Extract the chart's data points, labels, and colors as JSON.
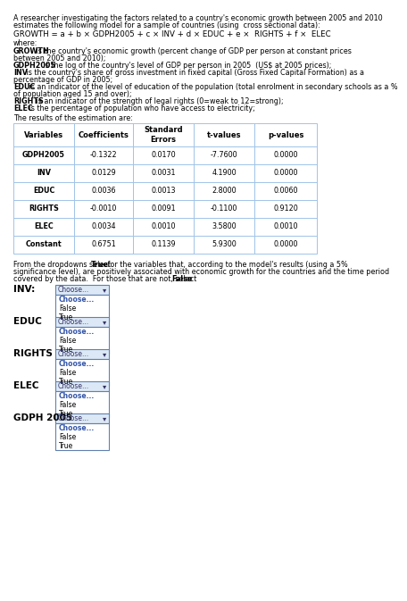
{
  "title_line1": "A researcher investigating the factors related to a country's economic growth between 2005 and 2010",
  "title_line2": "estimates the following model for a sample of countries (using  cross sectional data):",
  "equation": "GROWTH = a + b × GDPH2005 + c × INV + d × EDUC + e ×  RIGHTS + f ×  ELEC",
  "where_label": "where:",
  "def_labels": [
    "GROWTH",
    "GDPH2005",
    "INV",
    "EDUC",
    "RIGHTS",
    "ELEC"
  ],
  "def_texts": [
    " is the country's economic growth (percent change of GDP per person at constant prices",
    " is the log of the country's level of GDP per person in 2005  (US$ at 2005 prices);",
    " is the country's share of gross investment in fixed capital (Gross Fixed Capital Formation) as a",
    " is an indicator of the level of education of the population (total enrolment in secondary schools as a %",
    " is an indicator of the strength of legal rights (0=weak to 12=strong);",
    " is the percentage of population who have access to electricity;"
  ],
  "def_line2": [
    "between 2005 and 2010);",
    "",
    "percentage of GDP in 2005;",
    "of population aged 15 and over);",
    "",
    ""
  ],
  "results_label": "The results of the estimation are:",
  "table_headers": [
    "Variables",
    "Coefficients",
    "Standard\nErrors",
    "t-values",
    "p-values"
  ],
  "table_rows": [
    [
      "GDPH2005",
      "-0.1322",
      "0.0170",
      "-7.7600",
      "0.0000"
    ],
    [
      "INV",
      "0.0129",
      "0.0031",
      "4.1900",
      "0.0000"
    ],
    [
      "EDUC",
      "0.0036",
      "0.0013",
      "2.8000",
      "0.0060"
    ],
    [
      "RIGHTS",
      "-0.0010",
      "0.0091",
      "-0.1100",
      "0.9120"
    ],
    [
      "ELEC",
      "0.0034",
      "0.0010",
      "3.5800",
      "0.0010"
    ],
    [
      "Constant",
      "0.6751",
      "0.1139",
      "5.9300",
      "0.0000"
    ]
  ],
  "instr_line1": "From the dropdowns select True for the variables that, according to the model's results (using a 5%",
  "instr_line2": "significance level), are positively associated with economic growth for the countries and the time period",
  "instr_line3": "covered by the data.  For those that are not, select False.",
  "instr_true": "True",
  "instr_false": "False",
  "dropdown_labels": [
    "INV:",
    "EDUC",
    "RIGHTS",
    "ELEC",
    "GDPH 2005"
  ],
  "dropdown_options": [
    "Choose...",
    "False",
    "True"
  ],
  "bg_color": "#ffffff",
  "text_color": "#000000",
  "table_border_color": "#a0c4e8",
  "dropdown_bg": "#dce8f5",
  "dropdown_border": "#6080b0",
  "body_fs": 5.8,
  "eq_fs": 6.2,
  "table_fs": 5.8,
  "hdr_fs": 6.0,
  "dd_label_fs": 7.5,
  "dd_fs": 5.5
}
